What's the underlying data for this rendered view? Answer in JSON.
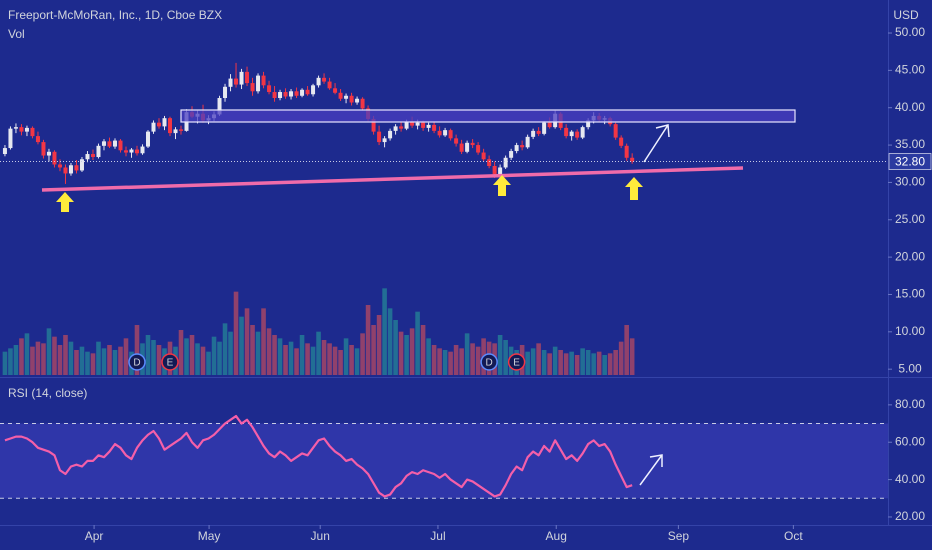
{
  "chart_data": [
    {
      "type": "candlestick",
      "title": "Freeport-McMoRan, Inc., 1D, Cboe BZX",
      "currency": "USD",
      "volume_label": "Vol",
      "up_color": "#e6e8f0",
      "down_color": "#f23645",
      "volume_up_color": "#26a69a",
      "volume_down_color": "#ef5350",
      "xlim": [
        -0.9,
        160.5
      ],
      "ylim": [
        4.22,
        54.42
      ],
      "volume_lim": [
        0,
        60
      ],
      "yticks": [
        {
          "value": 5,
          "label": "5.00"
        },
        {
          "value": 10,
          "label": "10.00"
        },
        {
          "value": 15,
          "label": "15.00"
        },
        {
          "value": 20,
          "label": "20.00"
        },
        {
          "value": 25,
          "label": "25.00"
        },
        {
          "value": 30,
          "label": "30.00"
        },
        {
          "value": 35,
          "label": "35.00"
        },
        {
          "value": 40,
          "label": "40.00"
        },
        {
          "value": 45,
          "label": "45.00"
        },
        {
          "value": 50,
          "label": "50.00"
        }
      ],
      "last_value": {
        "value": 32.8,
        "label": "32.80"
      },
      "events": [
        {
          "label": "D",
          "index": 24
        },
        {
          "label": "E",
          "index": 30
        },
        {
          "label": "D",
          "index": 88
        },
        {
          "label": "E",
          "index": 93
        }
      ],
      "ohlc": [
        [
          33.8,
          35.0,
          33.5,
          34.6
        ],
        [
          34.6,
          37.5,
          34.4,
          37.2
        ],
        [
          37.2,
          37.9,
          36.6,
          37.4
        ],
        [
          37.4,
          37.8,
          36.3,
          36.8
        ],
        [
          36.8,
          37.6,
          36.2,
          37.3
        ],
        [
          37.3,
          37.5,
          35.9,
          36.2
        ],
        [
          36.2,
          36.8,
          35.1,
          35.4
        ],
        [
          35.4,
          35.7,
          33.2,
          33.6
        ],
        [
          33.6,
          34.5,
          32.8,
          34.1
        ],
        [
          34.1,
          34.3,
          32.0,
          32.4
        ],
        [
          32.4,
          33.1,
          31.5,
          32.0
        ],
        [
          32.0,
          32.4,
          29.8,
          31.2
        ],
        [
          31.2,
          32.6,
          30.9,
          32.3
        ],
        [
          32.3,
          33.0,
          31.2,
          31.6
        ],
        [
          31.6,
          33.4,
          31.4,
          33.1
        ],
        [
          33.1,
          34.2,
          32.7,
          33.8
        ],
        [
          33.8,
          34.4,
          33.0,
          33.4
        ],
        [
          33.4,
          35.2,
          33.2,
          34.9
        ],
        [
          34.9,
          35.8,
          34.3,
          35.5
        ],
        [
          35.5,
          36.0,
          34.6,
          34.8
        ],
        [
          34.8,
          35.9,
          34.5,
          35.6
        ],
        [
          35.6,
          35.8,
          34.0,
          34.3
        ],
        [
          34.3,
          34.8,
          33.5,
          34.0
        ],
        [
          34.0,
          34.6,
          33.3,
          34.4
        ],
        [
          34.4,
          34.9,
          33.6,
          33.9
        ],
        [
          33.9,
          35.1,
          33.7,
          34.8
        ],
        [
          34.8,
          37.0,
          34.6,
          36.8
        ],
        [
          36.8,
          38.3,
          36.5,
          38.0
        ],
        [
          38.0,
          38.6,
          37.2,
          37.5
        ],
        [
          37.5,
          38.9,
          37.0,
          38.6
        ],
        [
          38.6,
          38.8,
          36.2,
          36.6
        ],
        [
          36.6,
          37.4,
          35.8,
          37.1
        ],
        [
          37.1,
          37.6,
          36.4,
          36.9
        ],
        [
          36.9,
          39.8,
          36.8,
          39.4
        ],
        [
          39.4,
          40.2,
          38.6,
          38.8
        ],
        [
          38.8,
          39.6,
          37.9,
          39.2
        ],
        [
          39.2,
          40.4,
          38.0,
          38.3
        ],
        [
          38.3,
          39.0,
          37.8,
          38.6
        ],
        [
          38.6,
          39.5,
          38.2,
          39.1
        ],
        [
          39.1,
          41.6,
          38.9,
          41.3
        ],
        [
          41.3,
          43.2,
          40.8,
          42.8
        ],
        [
          42.8,
          44.5,
          42.2,
          43.9
        ],
        [
          43.9,
          46.0,
          42.7,
          43.1
        ],
        [
          43.1,
          45.2,
          42.5,
          44.8
        ],
        [
          44.8,
          45.5,
          42.9,
          43.3
        ],
        [
          43.3,
          44.0,
          41.6,
          42.2
        ],
        [
          42.2,
          44.6,
          41.9,
          44.3
        ],
        [
          44.3,
          44.8,
          42.6,
          43.0
        ],
        [
          43.0,
          43.6,
          41.8,
          42.1
        ],
        [
          42.1,
          42.9,
          40.8,
          41.3
        ],
        [
          41.3,
          42.4,
          41.0,
          42.1
        ],
        [
          42.1,
          42.6,
          41.2,
          41.5
        ],
        [
          41.5,
          42.5,
          41.1,
          42.2
        ],
        [
          42.2,
          42.7,
          41.3,
          41.6
        ],
        [
          41.6,
          42.6,
          41.4,
          42.4
        ],
        [
          42.4,
          42.9,
          41.6,
          41.8
        ],
        [
          41.8,
          43.2,
          41.5,
          43.0
        ],
        [
          43.0,
          44.3,
          42.7,
          44.0
        ],
        [
          44.0,
          44.6,
          43.2,
          43.5
        ],
        [
          43.5,
          44.0,
          42.4,
          42.6
        ],
        [
          42.6,
          43.3,
          41.8,
          42.0
        ],
        [
          42.0,
          42.5,
          40.9,
          41.2
        ],
        [
          41.2,
          41.9,
          40.6,
          41.6
        ],
        [
          41.6,
          42.0,
          40.3,
          40.7
        ],
        [
          40.7,
          41.5,
          40.4,
          41.2
        ],
        [
          41.2,
          41.4,
          39.6,
          39.9
        ],
        [
          39.9,
          40.3,
          38.2,
          38.5
        ],
        [
          38.5,
          38.9,
          36.4,
          36.8
        ],
        [
          36.8,
          37.6,
          35.0,
          35.4
        ],
        [
          35.4,
          36.2,
          34.7,
          35.9
        ],
        [
          35.9,
          37.2,
          35.6,
          36.9
        ],
        [
          36.9,
          37.8,
          36.4,
          37.5
        ],
        [
          37.5,
          38.1,
          36.8,
          37.2
        ],
        [
          37.2,
          38.4,
          37.0,
          38.1
        ],
        [
          38.1,
          38.8,
          37.3,
          37.6
        ],
        [
          37.6,
          38.4,
          37.1,
          38.0
        ],
        [
          38.0,
          38.3,
          36.9,
          37.3
        ],
        [
          37.3,
          38.0,
          36.8,
          37.7
        ],
        [
          37.7,
          38.1,
          36.6,
          36.9
        ],
        [
          36.9,
          37.5,
          36.0,
          36.3
        ],
        [
          36.3,
          37.3,
          36.1,
          37.0
        ],
        [
          37.0,
          37.2,
          35.6,
          35.9
        ],
        [
          35.9,
          36.4,
          34.8,
          35.2
        ],
        [
          35.2,
          35.7,
          33.8,
          34.1
        ],
        [
          34.1,
          35.6,
          33.9,
          35.3
        ],
        [
          35.3,
          35.8,
          34.6,
          35.0
        ],
        [
          35.0,
          35.4,
          33.7,
          34.0
        ],
        [
          34.0,
          34.5,
          32.8,
          33.1
        ],
        [
          33.1,
          33.6,
          31.9,
          32.2
        ],
        [
          32.2,
          32.8,
          30.6,
          31.1
        ],
        [
          31.1,
          32.4,
          30.3,
          32.0
        ],
        [
          32.0,
          33.6,
          31.8,
          33.3
        ],
        [
          33.3,
          34.5,
          33.0,
          34.2
        ],
        [
          34.2,
          35.3,
          33.9,
          35.0
        ],
        [
          35.0,
          35.6,
          34.3,
          34.7
        ],
        [
          34.7,
          36.4,
          34.5,
          36.1
        ],
        [
          36.1,
          37.2,
          35.8,
          36.9
        ],
        [
          36.9,
          37.4,
          36.2,
          36.5
        ],
        [
          36.5,
          38.2,
          36.3,
          38.0
        ],
        [
          38.0,
          38.7,
          37.2,
          37.4
        ],
        [
          37.4,
          39.6,
          37.2,
          39.2
        ],
        [
          39.2,
          39.4,
          37.0,
          37.3
        ],
        [
          37.3,
          37.8,
          35.9,
          36.2
        ],
        [
          36.2,
          37.0,
          35.6,
          36.8
        ],
        [
          36.8,
          37.1,
          35.7,
          36.0
        ],
        [
          36.0,
          37.6,
          35.8,
          37.4
        ],
        [
          37.4,
          38.6,
          37.1,
          38.3
        ],
        [
          38.3,
          39.4,
          37.9,
          38.9
        ],
        [
          38.9,
          39.3,
          38.1,
          38.4
        ],
        [
          38.4,
          38.9,
          37.8,
          38.6
        ],
        [
          38.6,
          38.8,
          37.5,
          37.8
        ],
        [
          37.8,
          38.0,
          35.7,
          36.0
        ],
        [
          36.0,
          36.3,
          34.6,
          34.9
        ],
        [
          34.9,
          35.2,
          32.9,
          33.3
        ],
        [
          33.3,
          33.9,
          32.5,
          32.8
        ]
      ],
      "volume": [
        14,
        16,
        18,
        22,
        25,
        17,
        20,
        19,
        28,
        23,
        18,
        24,
        20,
        15,
        17,
        14,
        13,
        20,
        16,
        18,
        15,
        17,
        22,
        14,
        30,
        19,
        24,
        21,
        18,
        16,
        20,
        17,
        27,
        22,
        24,
        19,
        17,
        14,
        23,
        20,
        31,
        26,
        50,
        35,
        40,
        30,
        26,
        40,
        28,
        24,
        22,
        18,
        20,
        16,
        24,
        19,
        17,
        26,
        21,
        19,
        17,
        15,
        22,
        18,
        16,
        25,
        42,
        30,
        36,
        52,
        40,
        33,
        26,
        24,
        28,
        38,
        30,
        22,
        18,
        16,
        15,
        14,
        18,
        16,
        25,
        19,
        17,
        22,
        20,
        19,
        24,
        21,
        17,
        15,
        18,
        14,
        16,
        19,
        15,
        13,
        17,
        15,
        13,
        14,
        12,
        16,
        15,
        13,
        14,
        12,
        13,
        15,
        20,
        30,
        22
      ]
    },
    {
      "type": "line",
      "title": "RSI (14, close)",
      "color": "#f45fa9",
      "band_color": "#3439b0",
      "xlim": [
        -0.9,
        160.5
      ],
      "ylim": [
        15.7,
        93.3
      ],
      "levels": [
        70,
        30
      ],
      "yticks": [
        {
          "value": 20,
          "label": "20.00"
        },
        {
          "value": 40,
          "label": "40.00"
        },
        {
          "value": 60,
          "label": "60.00"
        },
        {
          "value": 80,
          "label": "80.00"
        }
      ],
      "xticks": [
        {
          "value": 16.2,
          "label": "Apr"
        },
        {
          "value": 37.1,
          "label": "May"
        },
        {
          "value": 57.3,
          "label": "Jun"
        },
        {
          "value": 78.7,
          "label": "Jul"
        },
        {
          "value": 100.2,
          "label": "Aug"
        },
        {
          "value": 122.4,
          "label": "Sep"
        },
        {
          "value": 143.3,
          "label": "Oct"
        }
      ],
      "values": [
        61,
        62,
        63,
        63,
        62,
        60,
        57,
        56,
        55,
        53,
        45,
        43,
        47,
        48,
        47,
        50,
        50,
        53,
        52,
        55,
        59,
        57,
        53,
        51,
        57,
        61,
        64,
        66,
        62,
        56,
        58,
        60,
        62,
        65,
        60,
        57,
        61,
        62,
        64,
        67,
        70,
        72,
        74,
        70,
        72,
        68,
        63,
        58,
        54,
        52,
        55,
        53,
        50,
        52,
        54,
        53,
        57,
        61,
        62,
        58,
        55,
        53,
        50,
        51,
        48,
        46,
        43,
        38,
        33,
        31,
        32,
        36,
        38,
        42,
        44,
        43,
        45,
        44,
        43,
        41,
        43,
        40,
        38,
        36,
        40,
        39,
        37,
        35,
        33,
        31,
        32,
        37,
        43,
        47,
        45,
        52,
        55,
        53,
        58,
        55,
        61,
        56,
        51,
        53,
        50,
        54,
        59,
        61,
        58,
        59,
        55,
        48,
        42,
        36,
        37
      ]
    }
  ]
}
